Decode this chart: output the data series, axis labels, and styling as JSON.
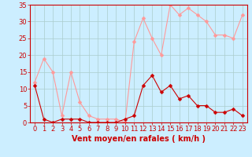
{
  "x": [
    0,
    1,
    2,
    3,
    4,
    5,
    6,
    7,
    8,
    9,
    10,
    11,
    12,
    13,
    14,
    15,
    16,
    17,
    18,
    19,
    20,
    21,
    22,
    23
  ],
  "vent_moyen": [
    11,
    1,
    0,
    1,
    1,
    1,
    0,
    0,
    0,
    0,
    1,
    2,
    11,
    14,
    9,
    11,
    7,
    8,
    5,
    5,
    3,
    3,
    4,
    2
  ],
  "rafales": [
    12,
    19,
    15,
    2,
    15,
    6,
    2,
    1,
    1,
    1,
    0,
    24,
    31,
    25,
    20,
    35,
    32,
    34,
    32,
    30,
    26,
    26,
    25,
    32
  ],
  "color_moyen": "#cc0000",
  "color_rafales": "#ff9999",
  "bg_color": "#cceeff",
  "grid_color": "#aacccc",
  "xlabel": "Vent moyen/en rafales ( km/h )",
  "ylim": [
    0,
    35
  ],
  "yticks": [
    0,
    5,
    10,
    15,
    20,
    25,
    30,
    35
  ],
  "axis_fontsize": 7,
  "tick_fontsize": 6,
  "marker_size": 2.5,
  "line_width": 0.8
}
